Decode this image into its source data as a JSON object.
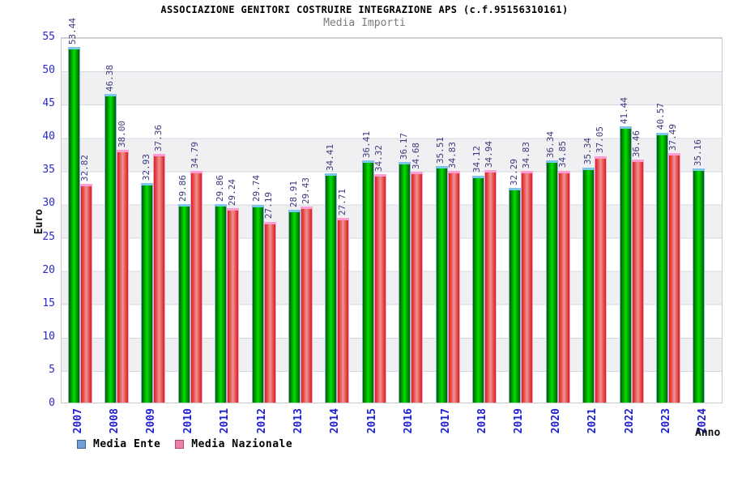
{
  "chart_data": {
    "type": "bar",
    "title": "ASSOCIAZIONE GENITORI COSTRUIRE INTEGRAZIONE APS (c.f.95156310161)",
    "subtitle": "Media Importi",
    "xlabel": "Anno",
    "ylabel": "Euro",
    "ylim": [
      0,
      55
    ],
    "ytick_step": 5,
    "grid": "horizontal-bands-every-5",
    "legend_position": "bottom-left",
    "categories": [
      "2007",
      "2008",
      "2009",
      "2010",
      "2011",
      "2012",
      "2013",
      "2014",
      "2015",
      "2016",
      "2017",
      "2018",
      "2019",
      "2020",
      "2021",
      "2022",
      "2023",
      "2024"
    ],
    "series": [
      {
        "name": "Media Ente",
        "values": [
          53.44,
          46.38,
          32.93,
          29.86,
          29.86,
          29.74,
          28.91,
          34.41,
          36.41,
          36.17,
          35.51,
          34.12,
          32.29,
          36.34,
          35.34,
          41.44,
          40.57,
          35.16
        ],
        "labels": [
          "53.44",
          "46.38",
          "32.93",
          "29.86",
          "29.86",
          "29.74",
          "28.91",
          "34.41",
          "36.41",
          "36.17",
          "35.51",
          "34.12",
          "32.29",
          "36.34",
          "35.34",
          "41.44",
          "40.57",
          "35.16"
        ],
        "bar_colors": {
          "edge": "#015e01",
          "mid": "#00e000",
          "cap": "#7cc6e8",
          "side": "#8ab4e0"
        },
        "legend_swatch": {
          "fill": "#6f9fd4",
          "border": "#38678f"
        }
      },
      {
        "name": "Media Nazionale",
        "values": [
          32.82,
          38.0,
          37.36,
          34.79,
          29.24,
          27.19,
          29.43,
          27.71,
          34.32,
          34.68,
          34.83,
          34.94,
          34.83,
          34.85,
          37.05,
          36.46,
          37.49,
          null
        ],
        "labels": [
          "32.82",
          "38.00",
          "37.36",
          "34.79",
          "29.24",
          "27.19",
          "29.43",
          "27.71",
          "34.32",
          "34.68",
          "34.83",
          "34.94",
          "34.83",
          "34.85",
          "37.05",
          "36.46",
          "37.49",
          null
        ],
        "bar_colors": {
          "edge": "#dd1b1b",
          "mid": "#ef9292",
          "cap": "#ff9dd2",
          "side": "#efa9cf"
        },
        "legend_swatch": {
          "fill": "#ee7fa8",
          "border": "#b04a74"
        }
      }
    ],
    "yticks": [
      "0",
      "5",
      "10",
      "15",
      "20",
      "25",
      "30",
      "35",
      "40",
      "45",
      "50",
      "55"
    ],
    "colors": {
      "value_label": "#3b3b7d",
      "year_label": "#1f1fd0",
      "ytick_label": "#2a2ac8",
      "axis_title": "#111111",
      "subtitle": "#7a7a7a",
      "band_gray": "#f0f0f2",
      "grid_line": "#d4d8e0",
      "plot_border": "#c8c8c8",
      "background": "#ffffff"
    }
  }
}
